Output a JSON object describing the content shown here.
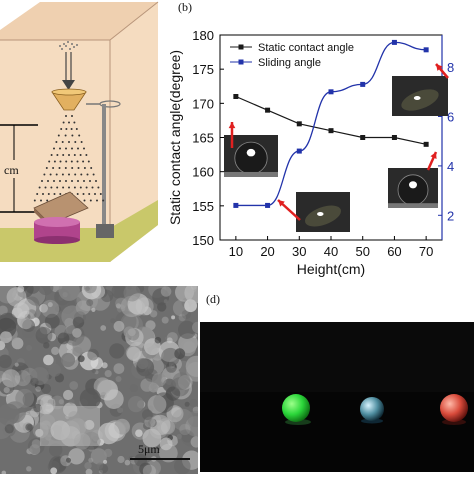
{
  "panels": {
    "b_label": "(b)",
    "d_label": "(d)"
  },
  "panel_a": {
    "height_label": "cm"
  },
  "panel_c": {
    "scale_bar_label": "5μm"
  },
  "colors": {
    "static_series": "#1a1a1a",
    "sliding_series": "#2233aa",
    "right_axis": "#2233aa",
    "arrow": "#e02020",
    "box_tan": "#f5dcc0",
    "box_base": "#c9c86a",
    "petri_dish": "#b0448c",
    "drop_green": "#2bd63a",
    "drop_clear": "#6fb8c8",
    "drop_red": "#d84a3a"
  },
  "chart_data": {
    "type": "line",
    "xlabel": "Height(cm)",
    "ylabel": "Static contact angle(degree)",
    "x": [
      10,
      20,
      30,
      40,
      50,
      60,
      70
    ],
    "xlim": [
      5,
      75
    ],
    "ylim": [
      150,
      180
    ],
    "xticks": [
      "10",
      "20",
      "30",
      "40",
      "50",
      "60",
      "70"
    ],
    "yticks": [
      "150",
      "155",
      "160",
      "165",
      "170",
      "175",
      "180"
    ],
    "right_axis": {
      "ticks": [
        "2",
        "4",
        "6",
        "8"
      ],
      "ylim": [
        1,
        9.3
      ]
    },
    "legend_position": "top-center",
    "series": [
      {
        "name": "Static contact angle",
        "axis": "left",
        "marker": "square",
        "values": [
          171,
          169,
          167,
          166,
          165,
          165,
          164
        ]
      },
      {
        "name": "Sliding angle",
        "axis": "right",
        "marker": "square",
        "values": [
          2.4,
          2.4,
          4.6,
          7.0,
          7.3,
          9.0,
          8.7
        ]
      }
    ]
  }
}
